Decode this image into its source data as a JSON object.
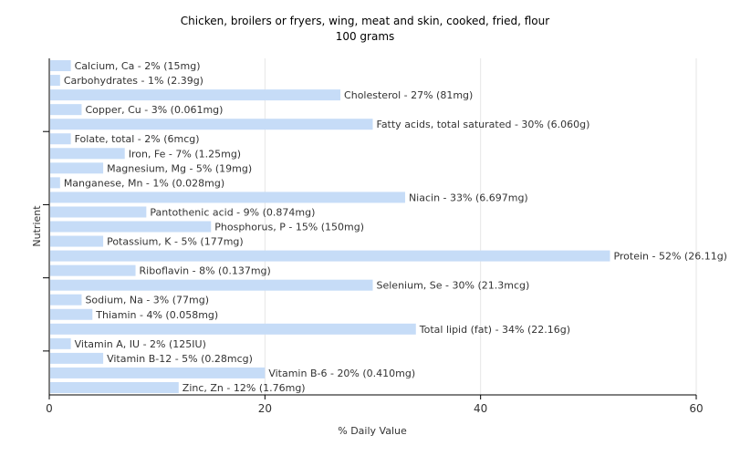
{
  "chart_data": {
    "type": "bar",
    "orientation": "horizontal",
    "title": "Chicken, broilers or fryers, wing, meat and skin, cooked, fried, flour",
    "subtitle": "100 grams",
    "xlabel": "% Daily Value",
    "ylabel": "Nutrient",
    "xlim": [
      0,
      60
    ],
    "xticks": [
      0,
      20,
      40,
      60
    ],
    "grid": true,
    "bar_color": "#c6dcf7",
    "categories": [
      "Calcium, Ca",
      "Carbohydrates",
      "Cholesterol",
      "Copper, Cu",
      "Fatty acids, total saturated",
      "Folate, total",
      "Iron, Fe",
      "Magnesium, Mg",
      "Manganese, Mn",
      "Niacin",
      "Pantothenic acid",
      "Phosphorus, P",
      "Potassium, K",
      "Protein",
      "Riboflavin",
      "Selenium, Se",
      "Sodium, Na",
      "Thiamin",
      "Total lipid (fat)",
      "Vitamin A, IU",
      "Vitamin B-12",
      "Vitamin B-6",
      "Zinc, Zn"
    ],
    "values": [
      2,
      1,
      27,
      3,
      30,
      2,
      7,
      5,
      1,
      33,
      9,
      15,
      5,
      52,
      8,
      30,
      3,
      4,
      34,
      2,
      5,
      20,
      12
    ],
    "labels": [
      "Calcium, Ca - 2% (15mg)",
      "Carbohydrates - 1% (2.39g)",
      "Cholesterol - 27% (81mg)",
      "Copper, Cu - 3% (0.061mg)",
      "Fatty acids, total saturated - 30% (6.060g)",
      "Folate, total - 2% (6mcg)",
      "Iron, Fe - 7% (1.25mg)",
      "Magnesium, Mg - 5% (19mg)",
      "Manganese, Mn - 1% (0.028mg)",
      "Niacin - 33% (6.697mg)",
      "Pantothenic acid - 9% (0.874mg)",
      "Phosphorus, P - 15% (150mg)",
      "Potassium, K - 5% (177mg)",
      "Protein - 52% (26.11g)",
      "Riboflavin - 8% (0.137mg)",
      "Selenium, Se - 30% (21.3mcg)",
      "Sodium, Na - 3% (77mg)",
      "Thiamin - 4% (0.058mg)",
      "Total lipid (fat) - 34% (22.16g)",
      "Vitamin A, IU - 2% (125IU)",
      "Vitamin B-12 - 5% (0.28mcg)",
      "Vitamin B-6 - 20% (0.410mg)",
      "Zinc, Zn - 12% (1.76mg)"
    ]
  }
}
